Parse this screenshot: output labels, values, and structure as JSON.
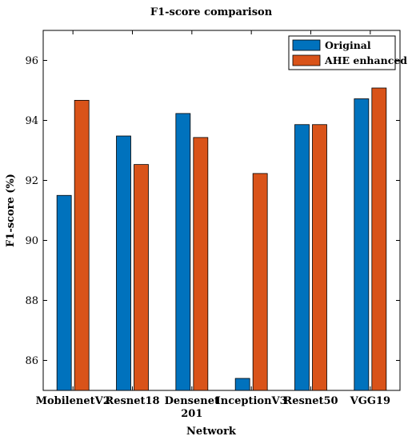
{
  "chart_data": {
    "type": "bar",
    "title": "F1-score comparison",
    "xlabel": "Network",
    "ylabel": "F1-score (%)",
    "categories": [
      [
        "MobilenetV2"
      ],
      [
        "Resnet18"
      ],
      [
        "Densenet",
        "201"
      ],
      [
        "InceptionV3"
      ],
      [
        "Resnet50"
      ],
      [
        "VGG19"
      ]
    ],
    "series": [
      {
        "name": "Original",
        "color": "#0072BD",
        "values": [
          91.5,
          93.48,
          94.23,
          85.4,
          93.86,
          94.72
        ]
      },
      {
        "name": "AHE enhanced",
        "color": "#D95319",
        "values": [
          94.67,
          92.53,
          93.43,
          92.23,
          93.86,
          95.08
        ]
      }
    ],
    "ylim": [
      85,
      97
    ],
    "yticks": [
      86,
      88,
      90,
      92,
      94,
      96
    ],
    "grid": false,
    "legend_position": "top-right"
  }
}
